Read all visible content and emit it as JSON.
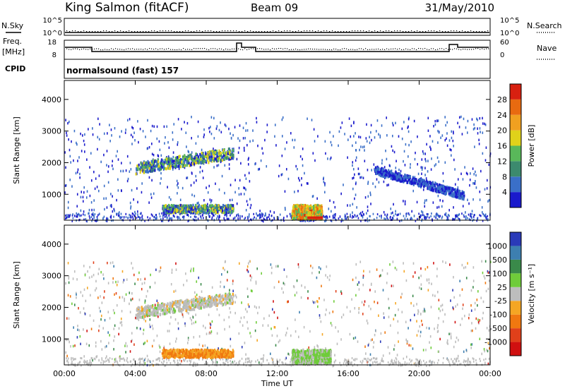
{
  "header": {
    "station": "King Salmon (fitACF)",
    "beam": "Beam 09",
    "date": "31/May/2010"
  },
  "status_panel": {
    "nsky_label": "N.Sky",
    "nsearch_label": "N.Search",
    "freq_label_top": "Freq.",
    "freq_label_unit": "[MHz]",
    "nave_label": "Nave",
    "cpid_label": "CPID",
    "cpid_value": "normalsound (fast) 157",
    "noise_ticks": [
      "10^5",
      "10^0"
    ],
    "freq_ticks": [
      "18",
      "8"
    ],
    "nave_ticks": [
      "60",
      "0"
    ]
  },
  "colors": {
    "power_scale": [
      "#1a1acc",
      "#3a6fc8",
      "#3c8a6e",
      "#59b85a",
      "#e0d21a",
      "#f0a020",
      "#e86a10",
      "#d82010"
    ],
    "velocity_scale": [
      "#2a3ab8",
      "#3d7fb0",
      "#3a8a4a",
      "#6fcc3a",
      "#bdbdbd",
      "#f5a623",
      "#f07810",
      "#e0401a",
      "#d01010"
    ]
  },
  "chart_data": [
    {
      "type": "heatmap",
      "title": "Power",
      "ylabel": "Slant Range [km]",
      "xlabel": "Time UT",
      "x_ticks": [
        "00:00",
        "04:00",
        "08:00",
        "12:00",
        "16:00",
        "20:00",
        "00:00"
      ],
      "y_ticks": [
        1000,
        2000,
        3000,
        4000
      ],
      "ylim": [
        180,
        4600
      ],
      "colorbar": {
        "label": "Power [dB]",
        "ticks": [
          4,
          8,
          12,
          16,
          20,
          24,
          28
        ]
      },
      "regions": [
        {
          "t": [
            4.0,
            9.5
          ],
          "r": [
            1700,
            2500
          ],
          "level": "16-20 dB"
        },
        {
          "t": [
            5.5,
            9.5
          ],
          "r": [
            450,
            700
          ],
          "level": "16-24 dB"
        },
        {
          "t": [
            12.8,
            14.5
          ],
          "r": [
            250,
            700
          ],
          "level": "20-28 dB"
        },
        {
          "t": [
            17.5,
            22.5
          ],
          "r": [
            1000,
            1800
          ],
          "level": "4-8 dB"
        }
      ]
    },
    {
      "type": "heatmap",
      "title": "Velocity",
      "ylabel": "Slant Range [km]",
      "xlabel": "Time UT",
      "x_ticks": [
        "00:00",
        "04:00",
        "08:00",
        "12:00",
        "16:00",
        "20:00",
        "00:00"
      ],
      "y_ticks": [
        1000,
        2000,
        3000,
        4000
      ],
      "ylim": [
        180,
        4600
      ],
      "colorbar": {
        "label": "Velocity [m s⁻¹]",
        "ticks": [
          "1000",
          "500",
          "100",
          "25",
          "-25",
          "-100",
          "-500",
          "-1000"
        ]
      },
      "regions": [
        {
          "t": [
            4.0,
            9.5
          ],
          "r": [
            1700,
            2500
          ],
          "level": "-25 to 25 m/s"
        },
        {
          "t": [
            5.5,
            9.5
          ],
          "r": [
            450,
            700
          ],
          "level": "-100 to -500 m/s"
        },
        {
          "t": [
            12.8,
            15.0
          ],
          "r": [
            250,
            700
          ],
          "level": "25 to 100 m/s"
        }
      ]
    }
  ]
}
